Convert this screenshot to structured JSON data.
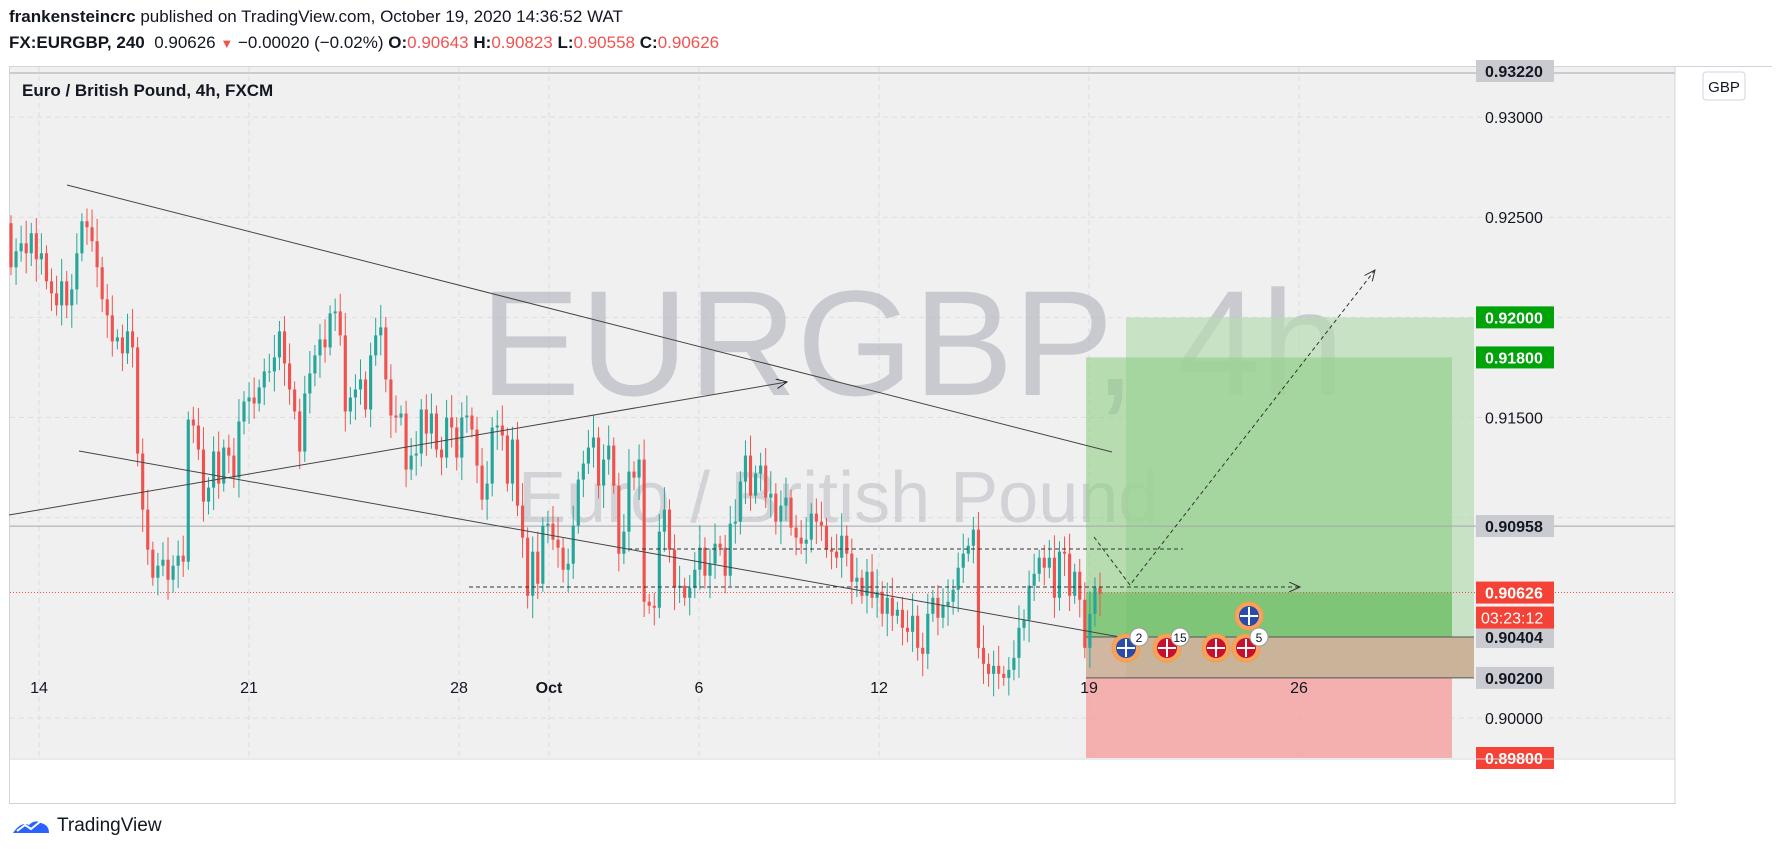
{
  "header": {
    "author": "frankensteincrc",
    "published": " published on TradingView.com, October 19, 2020 14:36:52 WAT",
    "symbol": "FX:EURGBP, 240",
    "last": "0.90626",
    "change_arrow": "▼",
    "change": "−0.00020 (−0.02%)",
    "o_label": "O:",
    "o_value": "0.90643",
    "h_label": "H:",
    "h_value": "0.90823",
    "l_label": "L:",
    "l_value": "0.90558",
    "c_label": "C:",
    "c_value": "0.90626"
  },
  "chart_data": {
    "type": "candlestick",
    "title": "Euro / British Pound, 4h, FXCM",
    "watermark_symbol": "EURGBP, 4h",
    "watermark_name": "Euro / British Pound",
    "currency": "GBP",
    "ylim": [
      0.898,
      0.9325
    ],
    "y_ticks": [
      "0.93000",
      "0.92500",
      "0.91500",
      "0.90000"
    ],
    "x_ticks": [
      {
        "label": "14",
        "day": 0
      },
      {
        "label": "21",
        "day": 7
      },
      {
        "label": "28",
        "day": 14
      },
      {
        "label": "Oct",
        "day": 17
      },
      {
        "label": "6",
        "day": 22
      },
      {
        "label": "12",
        "day": 28
      },
      {
        "label": "19",
        "day": 35
      },
      {
        "label": "26",
        "day": 42
      }
    ],
    "xlim_days": [
      -1,
      50
    ],
    "price_labels": [
      {
        "value": 0.92,
        "text": "0.92000",
        "kind": "green"
      },
      {
        "value": 0.918,
        "text": "0.91800",
        "kind": "green"
      },
      {
        "value": 0.90958,
        "text": "0.90958",
        "kind": "gray"
      },
      {
        "value": 0.90626,
        "text": "0.90626",
        "kind": "red"
      },
      {
        "value": 0.90404,
        "text": "0.90404",
        "kind": "gray"
      },
      {
        "value": 0.902,
        "text": "0.90200",
        "kind": "gray"
      },
      {
        "value": 0.898,
        "text": "0.89800",
        "kind": "red"
      },
      {
        "value": 0.9322,
        "text": "0.93220",
        "kind": "grayTop"
      }
    ],
    "countdown": "03:23:12",
    "trade": {
      "entry": 0.90404,
      "stop": 0.902,
      "target1": 0.918,
      "target2": 0.92,
      "low_zone": 0.898
    },
    "event_badges": [
      "2",
      "15",
      "5"
    ],
    "closes": [
      0.9225,
      0.9233,
      0.9237,
      0.9232,
      0.9242,
      0.9229,
      0.9232,
      0.9218,
      0.9212,
      0.9206,
      0.9218,
      0.9206,
      0.9214,
      0.9232,
      0.9248,
      0.9245,
      0.9238,
      0.9225,
      0.9209,
      0.9201,
      0.9188,
      0.919,
      0.9182,
      0.9193,
      0.9185,
      0.9132,
      0.9104,
      0.9084,
      0.907,
      0.9076,
      0.9079,
      0.9069,
      0.9076,
      0.9081,
      0.9078,
      0.9149,
      0.9146,
      0.9134,
      0.9108,
      0.9115,
      0.9133,
      0.9117,
      0.9135,
      0.9131,
      0.912,
      0.9148,
      0.9158,
      0.916,
      0.9157,
      0.9165,
      0.9173,
      0.9173,
      0.918,
      0.9193,
      0.9177,
      0.9164,
      0.9153,
      0.9133,
      0.9162,
      0.9172,
      0.9181,
      0.9189,
      0.9185,
      0.9202,
      0.9203,
      0.9191,
      0.9153,
      0.916,
      0.9164,
      0.9169,
      0.9154,
      0.9181,
      0.9191,
      0.9195,
      0.9169,
      0.9151,
      0.915,
      0.9152,
      0.9124,
      0.9131,
      0.9132,
      0.9154,
      0.9142,
      0.9152,
      0.9134,
      0.913,
      0.915,
      0.9145,
      0.913,
      0.915,
      0.9151,
      0.9144,
      0.9126,
      0.9109,
      0.9117,
      0.9145,
      0.9146,
      0.9141,
      0.9117,
      0.9139,
      0.9106,
      0.909,
      0.9061,
      0.9083,
      0.9067,
      0.9096,
      0.9097,
      0.9089,
      0.9085,
      0.9074,
      0.9077,
      0.9096,
      0.9119,
      0.9127,
      0.9135,
      0.914,
      0.9116,
      0.9129,
      0.9136,
      0.9116,
      0.9082,
      0.9093,
      0.9123,
      0.912,
      0.9129,
      0.9058,
      0.9056,
      0.9055,
      0.9093,
      0.9104,
      0.9084,
      0.9065,
      0.9066,
      0.906,
      0.9065,
      0.9074,
      0.9085,
      0.9071,
      0.9077,
      0.9087,
      0.9085,
      0.9071,
      0.9097,
      0.9098,
      0.9118,
      0.9131,
      0.9111,
      0.9122,
      0.9126,
      0.911,
      0.9112,
      0.9098,
      0.9106,
      0.911,
      0.9095,
      0.909,
      0.9087,
      0.9089,
      0.9102,
      0.9098,
      0.9096,
      0.9084,
      0.9083,
      0.908,
      0.9091,
      0.9082,
      0.9068,
      0.907,
      0.9061,
      0.9073,
      0.906,
      0.9063,
      0.9052,
      0.906,
      0.9051,
      0.9054,
      0.9045,
      0.9043,
      0.9051,
      0.9035,
      0.9032,
      0.9052,
      0.906,
      0.905,
      0.9056,
      0.9058,
      0.9064,
      0.9075,
      0.9082,
      0.9086,
      0.9094,
      0.9035,
      0.9027,
      0.9022,
      0.9026,
      0.9022,
      0.902,
      0.9024,
      0.903,
      0.9045,
      0.9049,
      0.9066,
      0.9072,
      0.908,
      0.9075,
      0.908,
      0.906,
      0.9083,
      0.9082,
      0.9061,
      0.9073,
      0.9059,
      0.9035,
      0.9052,
      0.9065,
      0.9062
    ]
  }
}
